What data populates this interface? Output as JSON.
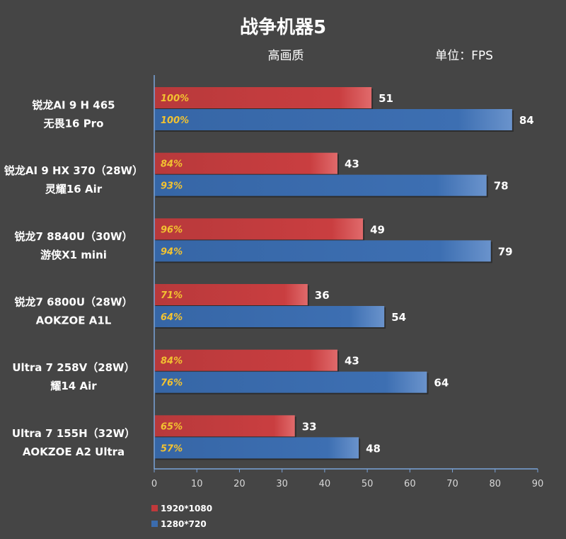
{
  "chart_data": {
    "type": "bar",
    "orientation": "horizontal",
    "title": "战争机器5",
    "subtitle": "高画质",
    "unit_label": "单位：FPS",
    "xlim": [
      0,
      90
    ],
    "xticks": [
      0,
      10,
      20,
      30,
      40,
      50,
      60,
      70,
      80,
      90
    ],
    "grid": false,
    "legend_position": "bottom-left",
    "categories": [
      [
        "锐龙AI 9 H 465",
        "无畏16 Pro"
      ],
      [
        "锐龙AI 9 HX 370（28W）",
        "灵耀16 Air"
      ],
      [
        "锐龙7 8840U（30W）",
        "游侠X1 mini"
      ],
      [
        "锐龙7 6800U（28W）",
        "AOKZOE A1L"
      ],
      [
        "Ultra 7 258V（28W）",
        "耀14 Air"
      ],
      [
        "Ultra 7 155H（32W）",
        "AOKZOE A2 Ultra"
      ]
    ],
    "series": [
      {
        "name": "1920*1080",
        "color": "#c0393b",
        "values": [
          51,
          43,
          49,
          36,
          43,
          33
        ],
        "percent_labels": [
          "100%",
          "84%",
          "96%",
          "71%",
          "84%",
          "65%"
        ]
      },
      {
        "name": "1280*720",
        "color": "#3b6cae",
        "values": [
          84,
          78,
          79,
          54,
          64,
          48
        ],
        "percent_labels": [
          "100%",
          "93%",
          "94%",
          "64%",
          "76%",
          "57%"
        ]
      }
    ]
  }
}
